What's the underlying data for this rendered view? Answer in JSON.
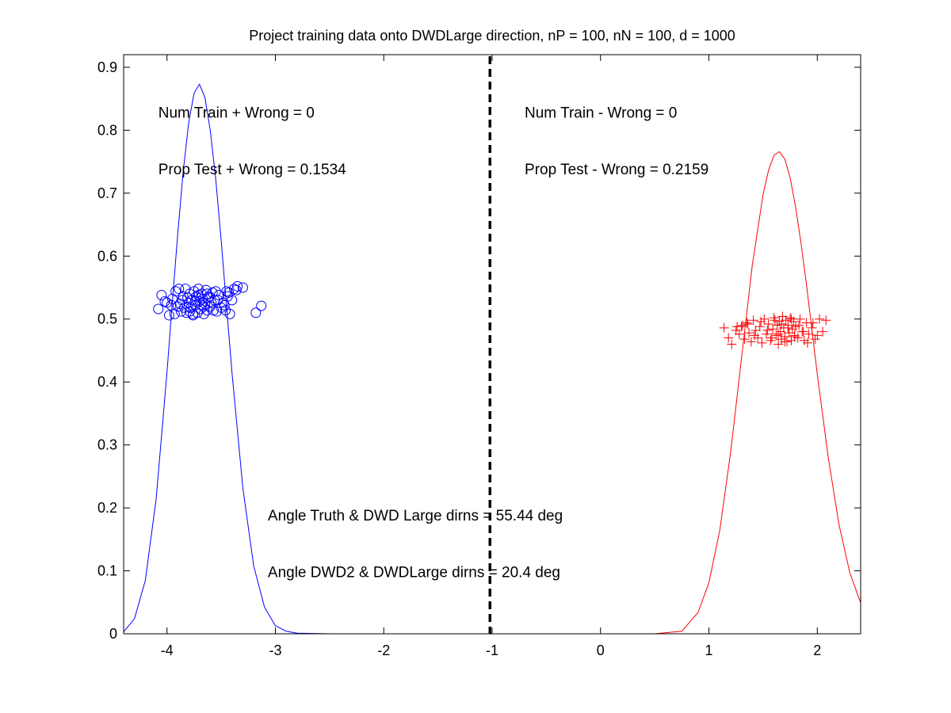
{
  "chart_data": {
    "type": "line",
    "title": "Project training data onto DWDLarge direction, nP = 100, nN = 100, d = 1000",
    "xlabel": "",
    "ylabel": "",
    "xlim": [
      -4.4,
      2.4
    ],
    "ylim": [
      0,
      0.92
    ],
    "xticks": [
      -4,
      -3,
      -2,
      -1,
      0,
      1,
      2
    ],
    "yticks": [
      0,
      0.1,
      0.2,
      0.3,
      0.4,
      0.5,
      0.6,
      0.7,
      0.8,
      0.9
    ],
    "xtick_labels": [
      "-4",
      "-3",
      "-2",
      "-1",
      "0",
      "1",
      "2"
    ],
    "ytick_labels": [
      "0",
      "0.1",
      "0.2",
      "0.3",
      "0.4",
      "0.5",
      "0.6",
      "0.7",
      "0.8",
      "0.9"
    ],
    "grid": false,
    "series": [
      {
        "style": "line",
        "color": "#0000ff",
        "x": [
          -4.4,
          -4.3,
          -4.2,
          -4.1,
          -4.0,
          -3.95,
          -3.9,
          -3.85,
          -3.8,
          -3.75,
          -3.7,
          -3.65,
          -3.6,
          -3.55,
          -3.5,
          -3.45,
          -3.4,
          -3.3,
          -3.2,
          -3.1,
          -3.0,
          -2.9,
          -2.8,
          -2.5,
          -2.1
        ],
        "y": [
          0.003,
          0.024,
          0.085,
          0.214,
          0.415,
          0.528,
          0.637,
          0.735,
          0.812,
          0.859,
          0.873,
          0.852,
          0.799,
          0.721,
          0.625,
          0.519,
          0.414,
          0.232,
          0.108,
          0.042,
          0.013,
          0.004,
          0.001,
          0.0,
          0.0
        ]
      },
      {
        "style": "line",
        "color": "#ff0000",
        "x": [
          0.05,
          0.5,
          0.75,
          0.9,
          1.0,
          1.1,
          1.2,
          1.3,
          1.4,
          1.5,
          1.55,
          1.6,
          1.65,
          1.7,
          1.75,
          1.8,
          1.85,
          1.9,
          2.0,
          2.1,
          2.2,
          2.3,
          2.4
        ],
        "y": [
          0.0,
          0.0,
          0.004,
          0.034,
          0.081,
          0.164,
          0.288,
          0.437,
          0.585,
          0.698,
          0.736,
          0.76,
          0.766,
          0.754,
          0.724,
          0.678,
          0.62,
          0.555,
          0.412,
          0.281,
          0.174,
          0.097,
          0.049
        ]
      },
      {
        "style": "scatter",
        "marker": "circle",
        "color": "#0000ff",
        "x": [
          -4.08,
          -4.05,
          -4.02,
          -3.98,
          -3.95,
          -3.92,
          -3.9,
          -3.87,
          -3.85,
          -3.83,
          -3.82,
          -3.8,
          -3.79,
          -3.78,
          -3.77,
          -3.76,
          -3.75,
          -3.74,
          -3.73,
          -3.72,
          -3.71,
          -3.7,
          -3.69,
          -3.68,
          -3.67,
          -3.66,
          -3.65,
          -3.64,
          -3.63,
          -3.62,
          -3.6,
          -3.58,
          -3.56,
          -3.54,
          -3.52,
          -3.5,
          -3.48,
          -3.45,
          -3.42,
          -3.4,
          -3.38,
          -3.35,
          -3.3,
          -3.18,
          -3.13,
          -3.96,
          -3.88,
          -3.84,
          -3.81,
          -3.74,
          -3.68,
          -3.61,
          -3.57,
          -3.53,
          -3.47,
          -3.43,
          -3.36,
          -4.0,
          -3.93,
          -3.86,
          -3.79,
          -3.71,
          -3.66,
          -3.59,
          -3.55,
          -3.46,
          -3.44,
          -3.89,
          -3.76,
          -3.63
        ],
        "y": [
          0.516,
          0.538,
          0.528,
          0.506,
          0.532,
          0.544,
          0.52,
          0.512,
          0.536,
          0.548,
          0.51,
          0.526,
          0.54,
          0.518,
          0.53,
          0.506,
          0.544,
          0.522,
          0.536,
          0.51,
          0.548,
          0.528,
          0.516,
          0.54,
          0.532,
          0.508,
          0.524,
          0.546,
          0.514,
          0.534,
          0.52,
          0.542,
          0.53,
          0.512,
          0.538,
          0.518,
          0.526,
          0.544,
          0.508,
          0.53,
          0.548,
          0.552,
          0.55,
          0.51,
          0.521,
          0.522,
          0.524,
          0.518,
          0.534,
          0.528,
          0.522,
          0.536,
          0.514,
          0.53,
          0.522,
          0.542,
          0.546,
          0.526,
          0.508,
          0.53,
          0.512,
          0.538,
          0.52,
          0.526,
          0.544,
          0.514,
          0.536,
          0.548,
          0.508,
          0.54
        ]
      },
      {
        "style": "scatter",
        "marker": "plus",
        "color": "#ff0000",
        "x": [
          1.14,
          1.18,
          1.21,
          1.25,
          1.28,
          1.31,
          1.33,
          1.35,
          1.37,
          1.39,
          1.41,
          1.43,
          1.45,
          1.47,
          1.49,
          1.51,
          1.53,
          1.55,
          1.57,
          1.59,
          1.6,
          1.62,
          1.63,
          1.64,
          1.65,
          1.66,
          1.67,
          1.68,
          1.69,
          1.7,
          1.71,
          1.72,
          1.73,
          1.74,
          1.75,
          1.76,
          1.77,
          1.78,
          1.79,
          1.8,
          1.82,
          1.84,
          1.86,
          1.88,
          1.9,
          1.92,
          1.95,
          1.98,
          2.02,
          2.05,
          2.08,
          1.3,
          1.36,
          1.42,
          1.48,
          1.54,
          1.58,
          1.61,
          1.64,
          1.67,
          1.7,
          1.73,
          1.76,
          1.79,
          1.83,
          1.87,
          1.91,
          1.96,
          2.0,
          1.26
        ],
        "y": [
          0.486,
          0.47,
          0.46,
          0.482,
          0.476,
          0.49,
          0.468,
          0.494,
          0.478,
          0.464,
          0.498,
          0.482,
          0.47,
          0.488,
          0.462,
          0.5,
          0.476,
          0.492,
          0.466,
          0.484,
          0.502,
          0.474,
          0.49,
          0.46,
          0.496,
          0.48,
          0.468,
          0.504,
          0.486,
          0.472,
          0.498,
          0.464,
          0.49,
          0.478,
          0.502,
          0.466,
          0.484,
          0.496,
          0.474,
          0.488,
          0.47,
          0.5,
          0.48,
          0.466,
          0.494,
          0.476,
          0.486,
          0.468,
          0.5,
          0.48,
          0.498,
          0.488,
          0.492,
          0.474,
          0.496,
          0.482,
          0.47,
          0.498,
          0.476,
          0.492,
          0.464,
          0.486,
          0.5,
          0.472,
          0.49,
          0.48,
          0.462,
          0.494,
          0.474,
          0.488
        ]
      }
    ],
    "reference_line": {
      "x": -1.02,
      "style": "dashed",
      "color": "#000000"
    },
    "annotations": [
      {
        "text": "Num Train + Wrong = 0",
        "x": -4.08,
        "y": 0.82
      },
      {
        "text": "Prop Test + Wrong = 0.1534",
        "x": -4.08,
        "y": 0.73
      },
      {
        "text": "Num Train - Wrong = 0",
        "x": -0.7,
        "y": 0.82
      },
      {
        "text": "Prop Test - Wrong = 0.2159",
        "x": -0.7,
        "y": 0.73
      },
      {
        "text": "Angle Truth & DWD Large dirns = 55.44 deg",
        "x": -3.07,
        "y": 0.18
      },
      {
        "text": "Angle DWD2 & DWDLarge dirns = 20.4 deg",
        "x": -3.07,
        "y": 0.09
      }
    ]
  }
}
